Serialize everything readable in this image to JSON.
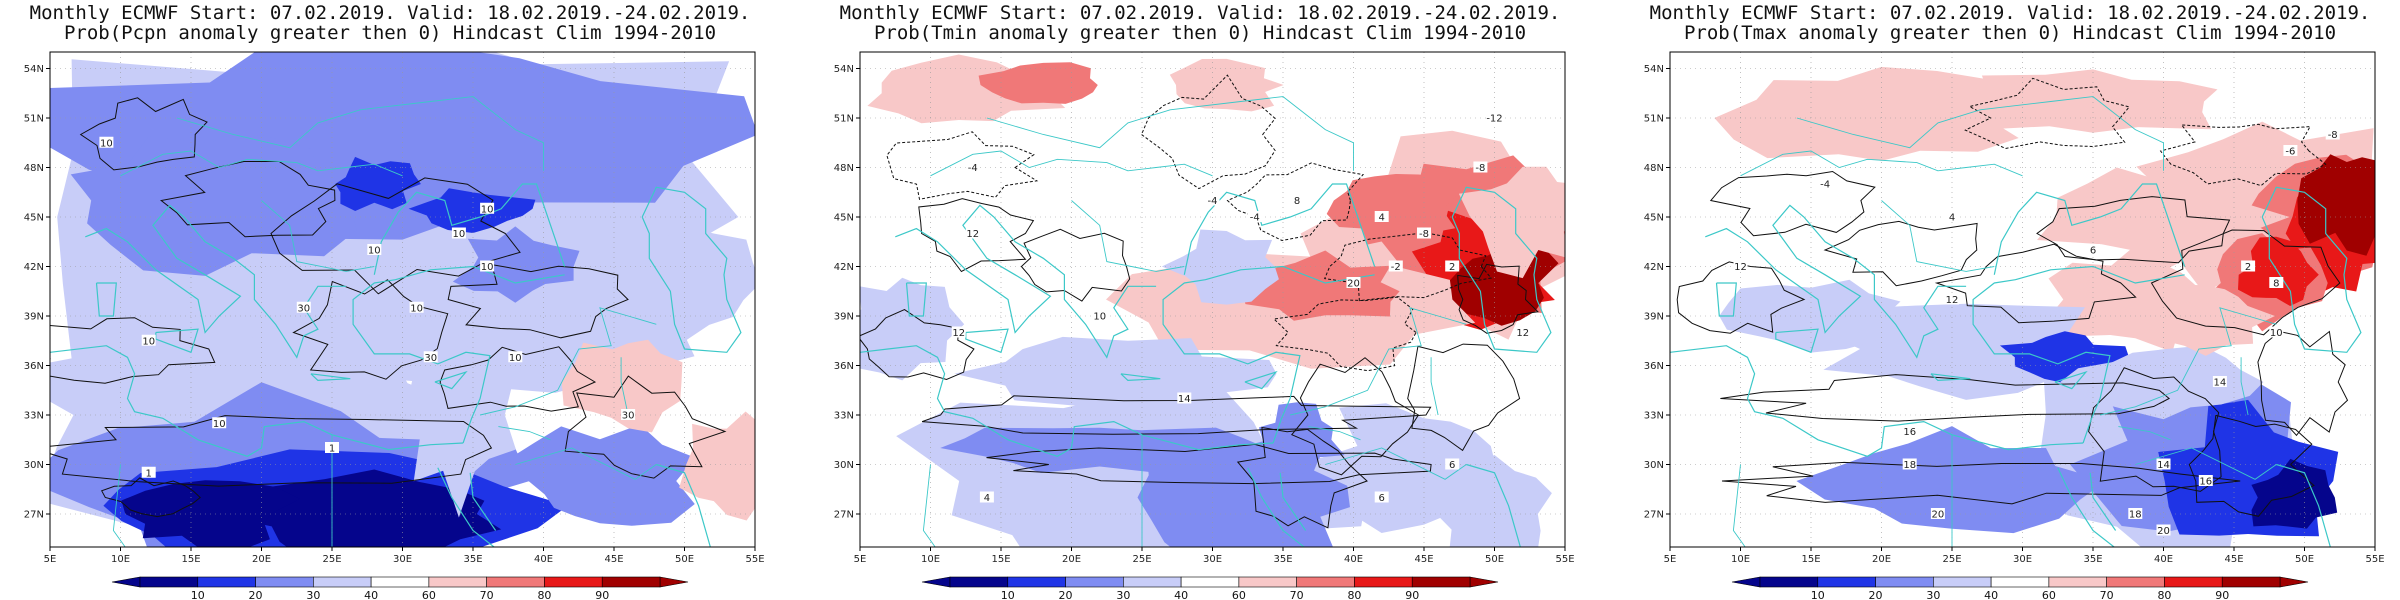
{
  "colors": {
    "coast": "#3cc8c8",
    "contour": "#111111",
    "p10": "#05058c",
    "p20": "#1f34e6",
    "p30": "#7f8cf2",
    "p40": "#c8cdf8",
    "p50": "#ffffff",
    "p60": "#f8c8c8",
    "p70": "#f07878",
    "p80": "#e81818",
    "p90": "#a00000"
  },
  "axes": {
    "lon_ticks": [
      "5E",
      "10E",
      "15E",
      "20E",
      "25E",
      "30E",
      "35E",
      "40E",
      "45E",
      "50E",
      "55E"
    ],
    "lat_ticks": [
      "54N",
      "51N",
      "48N",
      "45N",
      "42N",
      "39N",
      "36N",
      "33N",
      "30N",
      "27N"
    ],
    "lon_range": [
      5,
      55
    ],
    "lat_range": [
      25,
      55
    ]
  },
  "colorbar": {
    "labels": [
      "10",
      "20",
      "30",
      "40",
      "60",
      "70",
      "80",
      "90"
    ]
  },
  "panels": [
    {
      "title_line1": "Monthly ECMWF Start: 07.02.2019. Valid: 18.02.2019.-24.02.2019.",
      "title_line2": "Prob(Pcpn anomaly greater then 0) Hindcast Clim 1994-2010",
      "variable": "Pcpn",
      "contour_labels": [
        "10",
        "10",
        "10",
        "10",
        "10",
        "30",
        "10",
        "10",
        "30",
        "10",
        "10",
        "30",
        "1",
        "1"
      ]
    },
    {
      "title_line1": "Monthly ECMWF Start: 07.02.2019. Valid: 18.02.2019.-24.02.2019.",
      "title_line2": "Prob(Tmin anomaly greater then 0) Hindcast Clim 1994-2010",
      "variable": "Tmin",
      "contour_labels": [
        "-12",
        "-8",
        "-4",
        "-4",
        "12",
        "-4",
        "8",
        "4",
        "-8",
        "-2",
        "2",
        "20",
        "10",
        "12",
        "14",
        "4",
        "6",
        "6",
        "12"
      ]
    },
    {
      "title_line1": "Monthly ECMWF Start: 07.02.2019. Valid: 18.02.2019.-24.02.2019.",
      "title_line2": "Prob(Tmax anomaly greater then 0) Hindcast Clim 1994-2010",
      "variable": "Tmax",
      "contour_labels": [
        "-8",
        "-6",
        "-4",
        "4",
        "6",
        "12",
        "2",
        "8",
        "10",
        "12",
        "14",
        "16",
        "18",
        "20",
        "14",
        "16",
        "18",
        "20"
      ]
    }
  ]
}
